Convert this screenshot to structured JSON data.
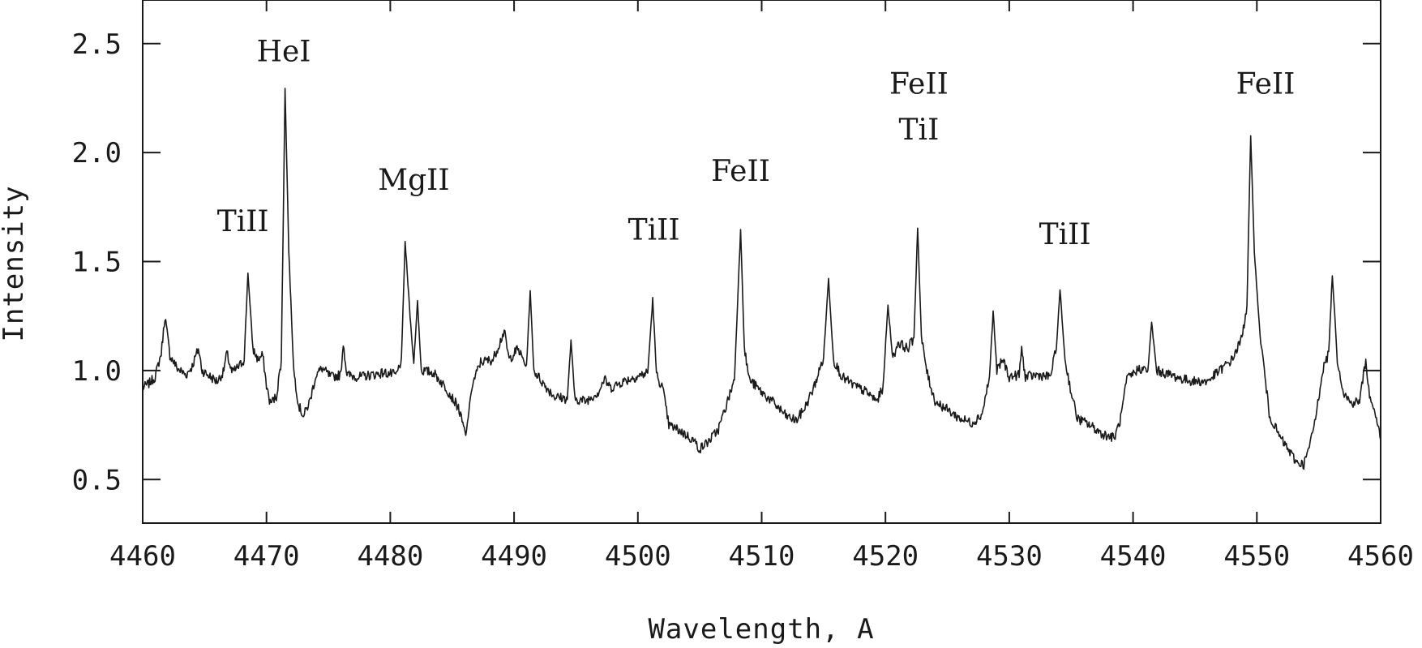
{
  "chart_data": {
    "type": "line",
    "xlabel": "Wavelength, A",
    "ylabel": "Intensity",
    "xlim": [
      4460,
      4560
    ],
    "ylim": [
      0.3,
      2.7
    ],
    "x_ticks": [
      "4460",
      "4470",
      "4480",
      "4490",
      "4500",
      "4510",
      "4520",
      "4530",
      "4540",
      "4550",
      "4560"
    ],
    "y_ticks": [
      "0.5",
      "1.0",
      "1.5",
      "2.0",
      "2.5"
    ],
    "x_tick_values": [
      4460,
      4470,
      4480,
      4490,
      4500,
      4510,
      4520,
      4530,
      4540,
      4550,
      4560
    ],
    "y_tick_values": [
      0.5,
      1.0,
      1.5,
      2.0,
      2.5
    ],
    "grid": false,
    "line_labels": [
      {
        "text": "TiII",
        "x": 4468.1,
        "y": 1.64
      },
      {
        "text": "HeI",
        "x": 4471.4,
        "y": 2.42
      },
      {
        "text": "MgII",
        "x": 4481.9,
        "y": 1.83
      },
      {
        "text": "TiII",
        "x": 4501.3,
        "y": 1.6
      },
      {
        "text": "FeII",
        "x": 4508.3,
        "y": 1.87
      },
      {
        "text": "FeII",
        "x": 4522.7,
        "y": 2.27
      },
      {
        "text": "TiI",
        "x": 4522.7,
        "y": 2.06
      },
      {
        "text": "TiII",
        "x": 4534.5,
        "y": 1.58
      },
      {
        "text": "FeII",
        "x": 4550.7,
        "y": 2.27
      }
    ],
    "series": [
      {
        "values": [
          [
            4460.0,
            0.92
          ],
          [
            4460.5,
            0.94
          ],
          [
            4461.0,
            0.97
          ],
          [
            4461.5,
            1.08
          ],
          [
            4461.8,
            1.25
          ],
          [
            4462.2,
            1.07
          ],
          [
            4462.8,
            1.01
          ],
          [
            4463.5,
            0.98
          ],
          [
            4464.0,
            1.02
          ],
          [
            4464.5,
            1.1
          ],
          [
            4464.8,
            1.0
          ],
          [
            4465.5,
            0.97
          ],
          [
            4466.0,
            0.95
          ],
          [
            4466.5,
            0.99
          ],
          [
            4466.8,
            1.08
          ],
          [
            4467.2,
            0.99
          ],
          [
            4467.8,
            1.02
          ],
          [
            4468.2,
            1.05
          ],
          [
            4468.5,
            1.45
          ],
          [
            4468.9,
            1.1
          ],
          [
            4469.3,
            1.05
          ],
          [
            4469.7,
            1.07
          ],
          [
            4470.0,
            0.93
          ],
          [
            4470.3,
            0.85
          ],
          [
            4470.8,
            0.88
          ],
          [
            4471.2,
            1.05
          ],
          [
            4471.5,
            2.3
          ],
          [
            4471.8,
            1.55
          ],
          [
            4472.2,
            1.0
          ],
          [
            4472.6,
            0.84
          ],
          [
            4473.0,
            0.79
          ],
          [
            4473.5,
            0.86
          ],
          [
            4474.0,
            0.98
          ],
          [
            4474.5,
            1.01
          ],
          [
            4475.2,
            0.97
          ],
          [
            4476.0,
            0.98
          ],
          [
            4476.2,
            1.13
          ],
          [
            4476.5,
            0.98
          ],
          [
            4477.5,
            0.97
          ],
          [
            4478.5,
            0.98
          ],
          [
            4479.5,
            0.99
          ],
          [
            4480.5,
            0.98
          ],
          [
            4480.9,
            1.05
          ],
          [
            4481.2,
            1.59
          ],
          [
            4481.6,
            1.25
          ],
          [
            4481.9,
            1.03
          ],
          [
            4482.2,
            1.32
          ],
          [
            4482.5,
            1.0
          ],
          [
            4483.5,
            0.99
          ],
          [
            4484.5,
            0.92
          ],
          [
            4485.5,
            0.83
          ],
          [
            4486.1,
            0.7
          ],
          [
            4486.6,
            0.93
          ],
          [
            4487.3,
            1.04
          ],
          [
            4488.3,
            1.05
          ],
          [
            4489.2,
            1.18
          ],
          [
            4489.6,
            1.05
          ],
          [
            4490.3,
            1.1
          ],
          [
            4491.0,
            1.02
          ],
          [
            4491.3,
            1.36
          ],
          [
            4491.6,
            1.0
          ],
          [
            4492.5,
            0.93
          ],
          [
            4493.3,
            0.88
          ],
          [
            4494.3,
            0.87
          ],
          [
            4494.6,
            1.14
          ],
          [
            4494.9,
            0.87
          ],
          [
            4495.8,
            0.86
          ],
          [
            4496.8,
            0.9
          ],
          [
            4497.3,
            0.96
          ],
          [
            4497.8,
            0.92
          ],
          [
            4498.8,
            0.95
          ],
          [
            4499.8,
            0.97
          ],
          [
            4500.8,
            0.99
          ],
          [
            4501.2,
            1.33
          ],
          [
            4501.5,
            0.98
          ],
          [
            4502.0,
            0.92
          ],
          [
            4502.5,
            0.75
          ],
          [
            4503.5,
            0.72
          ],
          [
            4504.5,
            0.68
          ],
          [
            4505.0,
            0.64
          ],
          [
            4505.8,
            0.68
          ],
          [
            4506.5,
            0.73
          ],
          [
            4507.2,
            0.85
          ],
          [
            4507.8,
            0.96
          ],
          [
            4508.3,
            1.65
          ],
          [
            4508.6,
            1.1
          ],
          [
            4509.0,
            0.96
          ],
          [
            4510.0,
            0.9
          ],
          [
            4511.0,
            0.85
          ],
          [
            4512.0,
            0.79
          ],
          [
            4512.8,
            0.77
          ],
          [
            4513.5,
            0.83
          ],
          [
            4514.2,
            0.92
          ],
          [
            4515.0,
            1.06
          ],
          [
            4515.4,
            1.42
          ],
          [
            4515.8,
            1.05
          ],
          [
            4516.5,
            0.97
          ],
          [
            4517.5,
            0.93
          ],
          [
            4518.5,
            0.9
          ],
          [
            4519.3,
            0.86
          ],
          [
            4519.8,
            0.92
          ],
          [
            4520.2,
            1.3
          ],
          [
            4520.6,
            1.05
          ],
          [
            4521.0,
            1.13
          ],
          [
            4521.8,
            1.1
          ],
          [
            4522.3,
            1.15
          ],
          [
            4522.6,
            1.66
          ],
          [
            4522.9,
            1.15
          ],
          [
            4523.4,
            0.98
          ],
          [
            4524.0,
            0.86
          ],
          [
            4525.0,
            0.82
          ],
          [
            4526.0,
            0.78
          ],
          [
            4527.0,
            0.76
          ],
          [
            4527.8,
            0.8
          ],
          [
            4528.4,
            0.97
          ],
          [
            4528.7,
            1.27
          ],
          [
            4529.0,
            1.0
          ],
          [
            4529.5,
            1.05
          ],
          [
            4530.0,
            0.97
          ],
          [
            4530.8,
            0.98
          ],
          [
            4531.0,
            1.1
          ],
          [
            4531.3,
            0.97
          ],
          [
            4532.3,
            0.98
          ],
          [
            4533.3,
            0.97
          ],
          [
            4533.8,
            1.1
          ],
          [
            4534.1,
            1.37
          ],
          [
            4534.5,
            1.05
          ],
          [
            4535.0,
            0.9
          ],
          [
            4535.5,
            0.78
          ],
          [
            4536.5,
            0.75
          ],
          [
            4537.5,
            0.71
          ],
          [
            4538.5,
            0.69
          ],
          [
            4539.0,
            0.78
          ],
          [
            4539.5,
            0.96
          ],
          [
            4540.5,
            1.01
          ],
          [
            4541.2,
            1.0
          ],
          [
            4541.5,
            1.22
          ],
          [
            4541.9,
            1.0
          ],
          [
            4543.0,
            0.98
          ],
          [
            4544.0,
            0.96
          ],
          [
            4545.0,
            0.95
          ],
          [
            4546.0,
            0.95
          ],
          [
            4547.0,
            1.0
          ],
          [
            4548.0,
            1.05
          ],
          [
            4548.8,
            1.15
          ],
          [
            4549.2,
            1.3
          ],
          [
            4549.5,
            2.07
          ],
          [
            4549.8,
            1.55
          ],
          [
            4550.2,
            1.2
          ],
          [
            4550.6,
            1.0
          ],
          [
            4551.0,
            0.8
          ],
          [
            4551.8,
            0.7
          ],
          [
            4552.5,
            0.64
          ],
          [
            4553.2,
            0.58
          ],
          [
            4553.8,
            0.57
          ],
          [
            4554.3,
            0.66
          ],
          [
            4554.8,
            0.8
          ],
          [
            4555.3,
            1.0
          ],
          [
            4555.8,
            1.08
          ],
          [
            4556.1,
            1.44
          ],
          [
            4556.5,
            1.05
          ],
          [
            4557.0,
            0.9
          ],
          [
            4557.6,
            0.85
          ],
          [
            4558.3,
            0.86
          ],
          [
            4558.8,
            1.05
          ],
          [
            4559.1,
            0.88
          ],
          [
            4559.6,
            0.8
          ],
          [
            4560.0,
            0.68
          ]
        ]
      }
    ]
  }
}
